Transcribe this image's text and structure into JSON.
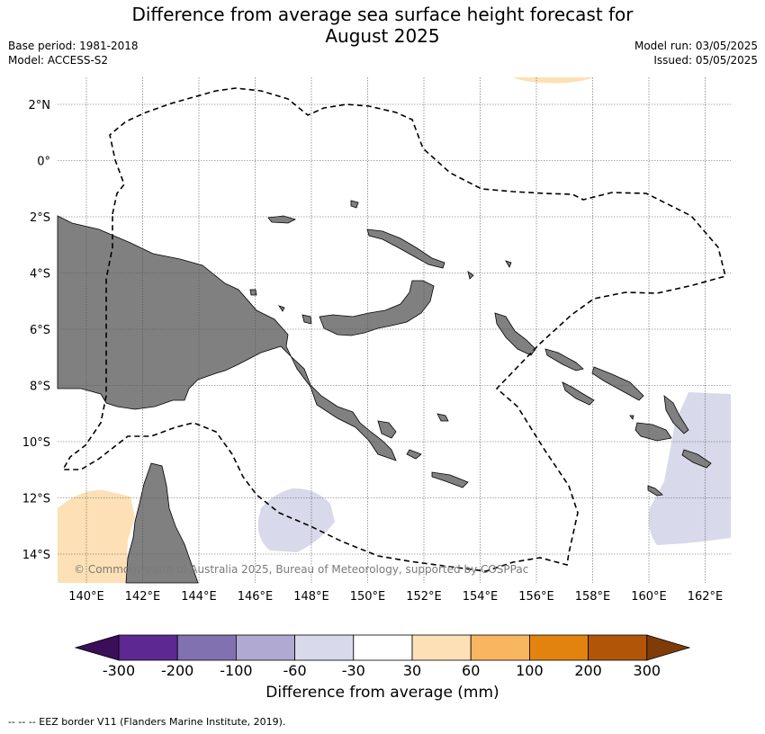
{
  "title_line1": "Difference from average sea surface height forecast for",
  "title_line2": "August 2025",
  "meta_left": {
    "base_period": "Base period: 1981-2018",
    "model": "Model: ACCESS-S2"
  },
  "meta_right": {
    "model_run": "Model run: 03/05/2025",
    "issued": "Issued: 05/05/2025"
  },
  "map": {
    "lon_ticks": [
      "140°E",
      "142°E",
      "144°E",
      "146°E",
      "148°E",
      "150°E",
      "152°E",
      "154°E",
      "156°E",
      "158°E",
      "160°E",
      "162°E"
    ],
    "lat_ticks": [
      "2°N",
      "0°",
      "2°S",
      "4°S",
      "6°S",
      "8°S",
      "10°S",
      "12°S",
      "14°S"
    ],
    "copyright": "© Commonwealth of Australia 2025, Bureau of Meteorology, supported by COSPPac",
    "colors": {
      "land": "#808080",
      "ocean": "#ffffff"
    }
  },
  "colorbar": {
    "label": "Difference from average (mm)",
    "tick_labels": [
      "-300",
      "-200",
      "-100",
      "-60",
      "-30",
      "30",
      "60",
      "100",
      "200",
      "300"
    ],
    "colors": [
      "#3b0f58",
      "#5d2891",
      "#8171b0",
      "#b0a9d2",
      "#d8d9ea",
      "#ffffff",
      "#fde0b5",
      "#f9b660",
      "#e2830f",
      "#b15609",
      "#7f3b08"
    ]
  },
  "footer": "--  --  -- EEZ border V11 (Flanders Marine Institute, 2019)."
}
